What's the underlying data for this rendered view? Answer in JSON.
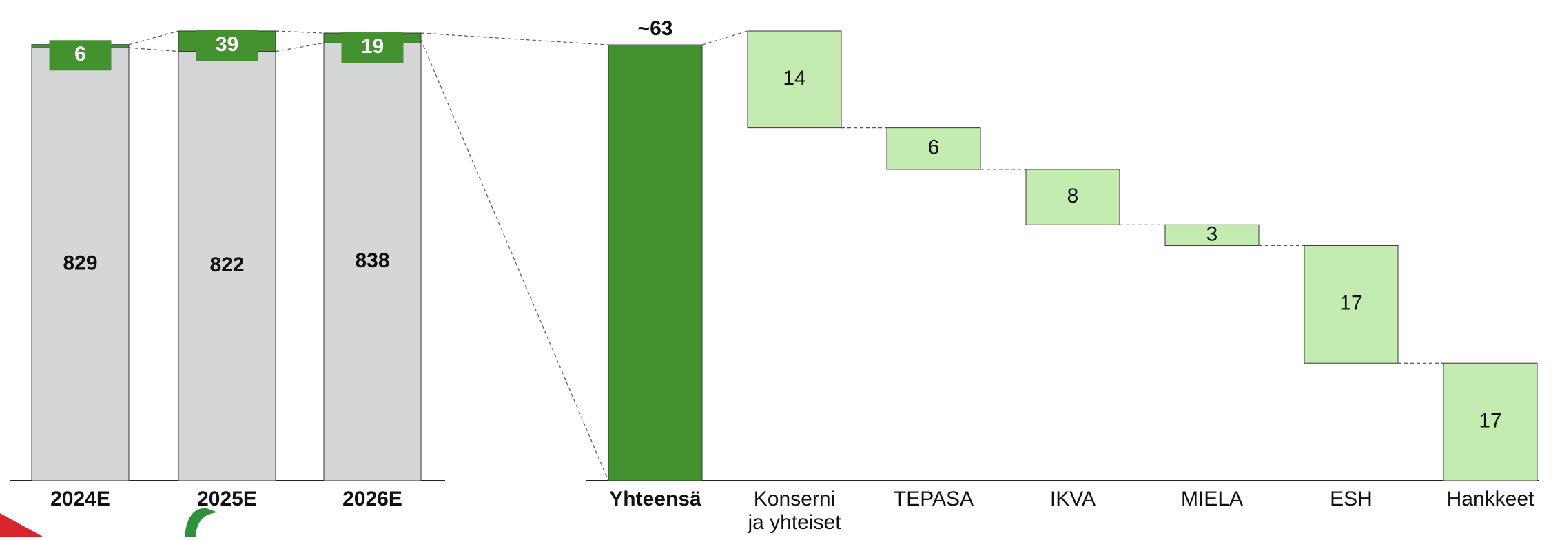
{
  "chart_data": [
    {
      "type": "stacked_bar",
      "categories": [
        "2024E",
        "2025E",
        "2026E"
      ],
      "series": [
        {
          "color": "#d5d6d8",
          "values": [
            829,
            822,
            838
          ]
        },
        {
          "color": "#44912f",
          "values": [
            6,
            39,
            19
          ]
        }
      ]
    },
    {
      "type": "waterfall",
      "categories": [
        "Yhteensä",
        "Konserni ja yhteiset",
        "TEPASA",
        "IKVA",
        "MIELA",
        "ESH",
        "Hankkeet"
      ],
      "values": [
        63,
        14,
        6,
        8,
        3,
        17,
        17
      ],
      "value_labels": [
        "~63",
        "14",
        "6",
        "8",
        "3",
        "17",
        "17"
      ],
      "total_color": "#44912f",
      "color": "#c5ecb0"
    }
  ]
}
